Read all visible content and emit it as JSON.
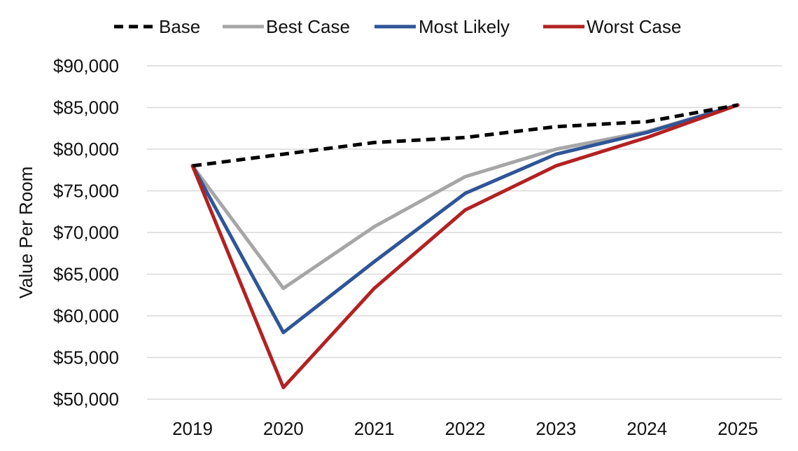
{
  "chart_data": {
    "type": "line",
    "title": "",
    "xlabel": "",
    "ylabel": "Value Per Room",
    "x": [
      "2019",
      "2020",
      "2021",
      "2022",
      "2023",
      "2024",
      "2025"
    ],
    "ylim": [
      50000,
      90000
    ],
    "yticks": [
      "$50,000",
      "$55,000",
      "$60,000",
      "$65,000",
      "$70,000",
      "$75,000",
      "$80,000",
      "$85,000",
      "$90,000"
    ],
    "ytick_values": [
      50000,
      55000,
      60000,
      65000,
      70000,
      75000,
      80000,
      85000,
      90000
    ],
    "grid": true,
    "legend_position": "top",
    "series": [
      {
        "name": "Base",
        "color": "#000000",
        "style": "dashed",
        "values": [
          78000,
          79400,
          80800,
          81400,
          82700,
          83300,
          85300
        ]
      },
      {
        "name": "Best Case",
        "color": "#a6a6a6",
        "style": "solid",
        "values": [
          78000,
          63300,
          70700,
          76700,
          80000,
          82100,
          85300
        ]
      },
      {
        "name": "Most Likely",
        "color": "#2f5597",
        "style": "solid",
        "values": [
          78000,
          58000,
          66500,
          74700,
          79400,
          82000,
          85300
        ]
      },
      {
        "name": "Worst Case",
        "color": "#b22222",
        "style": "solid",
        "values": [
          78000,
          51400,
          63300,
          72700,
          78000,
          81400,
          85300
        ]
      }
    ]
  }
}
